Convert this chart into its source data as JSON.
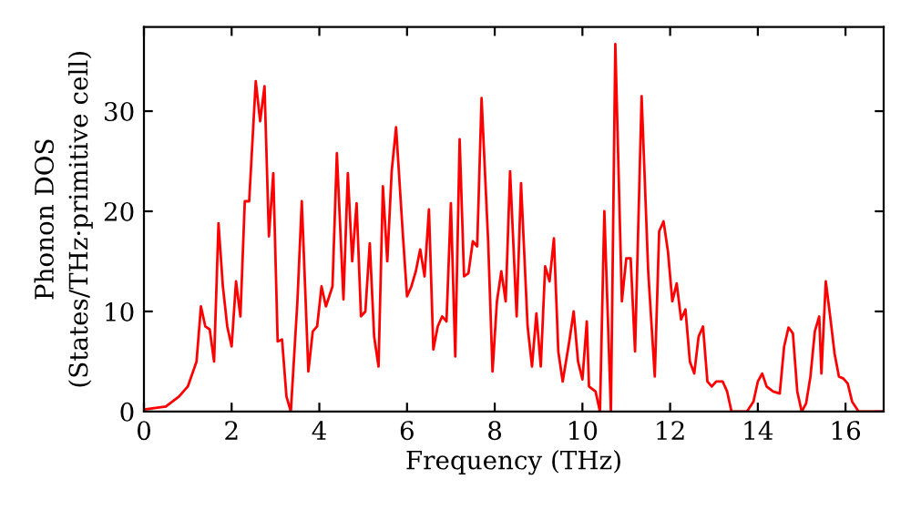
{
  "chart_data": {
    "type": "line",
    "xlabel": "Frequency (THz)",
    "ylabel": "Phonon DOS\n(States/THz·primitive cell)",
    "xlim": [
      0,
      16.87
    ],
    "ylim": [
      0,
      38.4
    ],
    "xticks": [
      0,
      2,
      4,
      6,
      8,
      10,
      12,
      14,
      16
    ],
    "yticks": [
      0,
      10,
      20,
      30
    ],
    "grid": false,
    "marker": "none",
    "line_style": "solid",
    "series": [
      {
        "color": "#ff0000",
        "x": [
          0,
          0.5,
          0.8,
          1.0,
          1.2,
          1.3,
          1.4,
          1.5,
          1.6,
          1.7,
          1.8,
          1.9,
          2.0,
          2.1,
          2.2,
          2.3,
          2.4,
          2.55,
          2.65,
          2.75,
          2.85,
          2.95,
          3.05,
          3.15,
          3.25,
          3.35,
          3.5,
          3.6,
          3.75,
          3.85,
          3.95,
          4.05,
          4.15,
          4.3,
          4.4,
          4.55,
          4.65,
          4.75,
          4.85,
          4.95,
          5.05,
          5.15,
          5.25,
          5.35,
          5.45,
          5.55,
          5.65,
          5.75,
          5.9,
          6.0,
          6.1,
          6.2,
          6.3,
          6.4,
          6.5,
          6.6,
          6.7,
          6.8,
          6.9,
          7.0,
          7.1,
          7.2,
          7.3,
          7.4,
          7.5,
          7.6,
          7.7,
          7.85,
          7.95,
          8.05,
          8.15,
          8.25,
          8.35,
          8.5,
          8.6,
          8.75,
          8.85,
          8.95,
          9.05,
          9.15,
          9.25,
          9.35,
          9.45,
          9.55,
          9.7,
          9.8,
          9.9,
          10.0,
          10.1,
          10.15,
          10.3,
          10.4,
          10.5,
          10.65,
          10.75,
          10.9,
          11.0,
          11.1,
          11.2,
          11.35,
          11.5,
          11.65,
          11.75,
          11.85,
          11.95,
          12.05,
          12.15,
          12.25,
          12.35,
          12.45,
          12.55,
          12.65,
          12.75,
          12.85,
          12.95,
          13.05,
          13.2,
          13.3,
          13.4,
          13.6,
          13.75,
          13.9,
          14.0,
          14.1,
          14.2,
          14.35,
          14.5,
          14.6,
          14.7,
          14.8,
          14.9,
          15.0,
          15.1,
          15.2,
          15.3,
          15.4,
          15.45,
          15.55,
          15.65,
          15.75,
          15.85,
          15.95,
          16.05,
          16.15,
          16.3,
          16.87
        ],
        "values": [
          0.2,
          0.5,
          1.5,
          2.5,
          5,
          10.5,
          8.5,
          8.2,
          5,
          18.8,
          12.5,
          8.5,
          6.5,
          13,
          9.5,
          21,
          21,
          33,
          29,
          32.5,
          17.5,
          23.8,
          7,
          7.2,
          1.5,
          0,
          11,
          21,
          4,
          8,
          8.5,
          12.5,
          10.5,
          12.5,
          25.8,
          11.2,
          23.8,
          15,
          20.8,
          9.5,
          10,
          16.8,
          7.5,
          4.5,
          22.5,
          15,
          24,
          28.4,
          18,
          11.5,
          12.5,
          14,
          16.2,
          13.5,
          20.2,
          6.2,
          8.5,
          9.5,
          9,
          20.8,
          5.5,
          27.2,
          13.5,
          13.8,
          17,
          16.5,
          31.3,
          17,
          4,
          11,
          14,
          11,
          24,
          9.5,
          22.8,
          8.5,
          4.5,
          9.8,
          4.5,
          14.5,
          13,
          17.3,
          6,
          3,
          7,
          10,
          5,
          3.2,
          9,
          2.5,
          2,
          0,
          20,
          0,
          36.7,
          11,
          15.3,
          15.3,
          6,
          31.5,
          14,
          3.5,
          18,
          19,
          16,
          11,
          12.8,
          9.2,
          10.2,
          5,
          3.8,
          7.5,
          8.5,
          3,
          2.5,
          3,
          3,
          2,
          0,
          0,
          0,
          1,
          3,
          3.8,
          2.5,
          2,
          1.8,
          6.5,
          8.4,
          7.8,
          2,
          0,
          0.8,
          3.5,
          8,
          9.5,
          3.8,
          13,
          9.5,
          5.8,
          3.5,
          3.3,
          2.8,
          1,
          0,
          0
        ]
      }
    ]
  }
}
